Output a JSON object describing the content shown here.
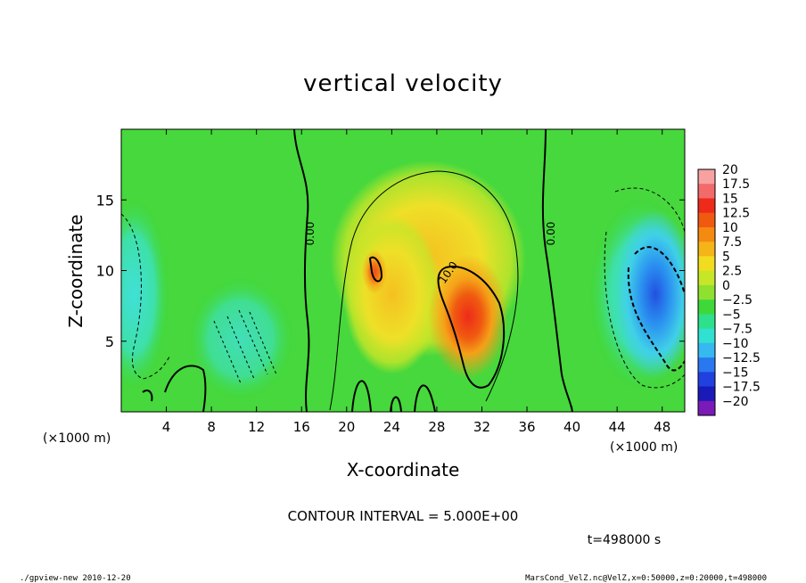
{
  "chart_data": {
    "type": "heatmap",
    "title": "vertical velocity",
    "xlabel": "X-coordinate",
    "ylabel": "Z-coordinate",
    "x_unit": "(×1000 m)",
    "x_unit_right": "(×1000 m)",
    "xlim": [
      0,
      50
    ],
    "ylim": [
      0,
      20
    ],
    "x_ticks": [
      4,
      8,
      12,
      16,
      20,
      24,
      28,
      32,
      36,
      40,
      44,
      48
    ],
    "y_ticks": [
      5,
      10,
      15
    ],
    "colorbar": {
      "levels": [
        "20",
        "17.5",
        "15",
        "12.5",
        "10",
        "7.5",
        "5",
        "2.5",
        "0",
        "−2.5",
        "−5",
        "−7.5",
        "−10",
        "−12.5",
        "−15",
        "−17.5",
        "−20"
      ],
      "colors": [
        "#f7a1a1",
        "#f26a6a",
        "#ee2a1a",
        "#f05a10",
        "#f58a10",
        "#f5b418",
        "#f2dc20",
        "#c8e628",
        "#8fe030",
        "#3ed83a",
        "#2ee08a",
        "#30e0d0",
        "#36b8f0",
        "#2a78f0",
        "#2040e0",
        "#1a1ab8",
        "#7a1ab8"
      ]
    },
    "contour_labels": [
      "0.00",
      "10.0",
      "0.00"
    ],
    "notes": {
      "contour_interval": "CONTOUR INTERVAL = 5.000E+00",
      "time": "t=498000 s"
    }
  },
  "footer": {
    "left": "./gpview-new  2010-12-20",
    "right": "MarsCond_VelZ.nc@VelZ,x=0:50000,z=0:20000,t=498000"
  }
}
